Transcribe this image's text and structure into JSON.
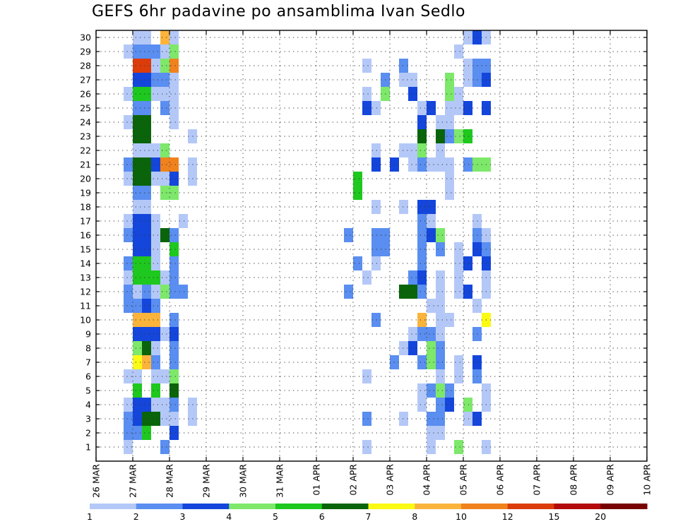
{
  "chart_data": {
    "type": "heatmap",
    "title": "GEFS 6hr padavine po ansamblima Ivan Sedlo",
    "xlabel": "",
    "ylabel": "",
    "x_ticks": [
      "26 MAR",
      "27 MAR",
      "28 MAR",
      "29 MAR",
      "30 MAR",
      "31 MAR",
      "01 APR",
      "02 APR",
      "03 APR",
      "04 APR",
      "05 APR",
      "06 APR",
      "07 APR",
      "08 APR",
      "09 APR",
      "10 APR"
    ],
    "y_ticks": [
      1,
      2,
      3,
      4,
      5,
      6,
      7,
      8,
      9,
      10,
      11,
      12,
      13,
      14,
      15,
      16,
      17,
      18,
      19,
      20,
      21,
      22,
      23,
      24,
      25,
      26,
      27,
      28,
      29,
      30
    ],
    "n_steps": 60,
    "grid": true,
    "legend": {
      "placement": "bottom",
      "labels": [
        "1",
        "2",
        "3",
        "4",
        "5",
        "6",
        "7",
        "8",
        "10",
        "12",
        "15",
        "20"
      ],
      "colors": [
        "#b4c8f8",
        "#5a8ef0",
        "#1446dc",
        "#7de86a",
        "#1ec81e",
        "#0a640a",
        "#fafa14",
        "#fab43c",
        "#f0821e",
        "#dc3c0a",
        "#b40a0a",
        "#780000"
      ]
    },
    "cells": [
      [
        3,
        1,
        1
      ],
      [
        3,
        2,
        2
      ],
      [
        3,
        3,
        2
      ],
      [
        3,
        4,
        1
      ],
      [
        3,
        6,
        1
      ],
      [
        3,
        11,
        2
      ],
      [
        3,
        12,
        2
      ],
      [
        3,
        13,
        1
      ],
      [
        3,
        14,
        2
      ],
      [
        3,
        16,
        2
      ],
      [
        3,
        17,
        1
      ],
      [
        3,
        20,
        1
      ],
      [
        3,
        21,
        2
      ],
      [
        3,
        24,
        1
      ],
      [
        3,
        26,
        1
      ],
      [
        3,
        29,
        1
      ],
      [
        4,
        2,
        2
      ],
      [
        4,
        3,
        3
      ],
      [
        4,
        4,
        3
      ],
      [
        4,
        5,
        5
      ],
      [
        4,
        6,
        1
      ],
      [
        4,
        7,
        7
      ],
      [
        4,
        8,
        4
      ],
      [
        4,
        9,
        3
      ],
      [
        4,
        10,
        8
      ],
      [
        4,
        11,
        2
      ],
      [
        4,
        12,
        1
      ],
      [
        4,
        13,
        5
      ],
      [
        4,
        14,
        5
      ],
      [
        4,
        15,
        3
      ],
      [
        4,
        16,
        3
      ],
      [
        4,
        17,
        3
      ],
      [
        4,
        18,
        1
      ],
      [
        4,
        19,
        2
      ],
      [
        4,
        20,
        6
      ],
      [
        4,
        21,
        6
      ],
      [
        4,
        22,
        1
      ],
      [
        4,
        23,
        6
      ],
      [
        4,
        24,
        6
      ],
      [
        4,
        25,
        2
      ],
      [
        4,
        26,
        5
      ],
      [
        4,
        27,
        3
      ],
      [
        4,
        28,
        10
      ],
      [
        4,
        29,
        2
      ],
      [
        4,
        30,
        1
      ],
      [
        5,
        2,
        5
      ],
      [
        5,
        3,
        6
      ],
      [
        5,
        4,
        3
      ],
      [
        5,
        7,
        8
      ],
      [
        5,
        8,
        6
      ],
      [
        5,
        9,
        3
      ],
      [
        5,
        10,
        8
      ],
      [
        5,
        11,
        3
      ],
      [
        5,
        12,
        2
      ],
      [
        5,
        13,
        5
      ],
      [
        5,
        14,
        5
      ],
      [
        5,
        15,
        3
      ],
      [
        5,
        16,
        3
      ],
      [
        5,
        17,
        3
      ],
      [
        5,
        18,
        1
      ],
      [
        5,
        19,
        2
      ],
      [
        5,
        20,
        6
      ],
      [
        5,
        21,
        6
      ],
      [
        5,
        22,
        1
      ],
      [
        5,
        23,
        6
      ],
      [
        5,
        24,
        6
      ],
      [
        5,
        25,
        2
      ],
      [
        5,
        26,
        5
      ],
      [
        5,
        27,
        3
      ],
      [
        5,
        28,
        10
      ],
      [
        5,
        29,
        2
      ],
      [
        5,
        30,
        1
      ],
      [
        6,
        3,
        6
      ],
      [
        6,
        4,
        1
      ],
      [
        6,
        5,
        5
      ],
      [
        6,
        6,
        1
      ],
      [
        6,
        7,
        2
      ],
      [
        6,
        8,
        1
      ],
      [
        6,
        9,
        3
      ],
      [
        6,
        10,
        8
      ],
      [
        6,
        11,
        2
      ],
      [
        6,
        12,
        1
      ],
      [
        6,
        13,
        5
      ],
      [
        6,
        14,
        1
      ],
      [
        6,
        15,
        1
      ],
      [
        6,
        16,
        1
      ],
      [
        6,
        17,
        1
      ],
      [
        6,
        20,
        1
      ],
      [
        6,
        21,
        3
      ],
      [
        6,
        22,
        1
      ],
      [
        6,
        26,
        1
      ],
      [
        6,
        27,
        2
      ],
      [
        6,
        28,
        1
      ],
      [
        6,
        29,
        2
      ],
      [
        7,
        1,
        2
      ],
      [
        7,
        3,
        1
      ],
      [
        7,
        4,
        1
      ],
      [
        7,
        6,
        1
      ],
      [
        7,
        9,
        1
      ],
      [
        7,
        12,
        4
      ],
      [
        7,
        13,
        1
      ],
      [
        7,
        16,
        6
      ],
      [
        7,
        19,
        4
      ],
      [
        7,
        20,
        1
      ],
      [
        7,
        21,
        9
      ],
      [
        7,
        22,
        4
      ],
      [
        7,
        25,
        2
      ],
      [
        7,
        26,
        1
      ],
      [
        7,
        27,
        2
      ],
      [
        7,
        28,
        4
      ],
      [
        7,
        29,
        1
      ],
      [
        7,
        30,
        8
      ],
      [
        8,
        2,
        3
      ],
      [
        8,
        3,
        1
      ],
      [
        8,
        4,
        2
      ],
      [
        8,
        5,
        6
      ],
      [
        8,
        6,
        4
      ],
      [
        8,
        7,
        2
      ],
      [
        8,
        8,
        2
      ],
      [
        8,
        9,
        3
      ],
      [
        8,
        10,
        2
      ],
      [
        8,
        12,
        2
      ],
      [
        8,
        13,
        2
      ],
      [
        8,
        14,
        2
      ],
      [
        8,
        15,
        5
      ],
      [
        8,
        16,
        2
      ],
      [
        8,
        19,
        4
      ],
      [
        8,
        20,
        3
      ],
      [
        8,
        21,
        9
      ],
      [
        8,
        24,
        1
      ],
      [
        8,
        25,
        1
      ],
      [
        8,
        26,
        1
      ],
      [
        8,
        27,
        1
      ],
      [
        8,
        28,
        9
      ],
      [
        8,
        29,
        4
      ],
      [
        8,
        30,
        1
      ],
      [
        9,
        12,
        2
      ],
      [
        9,
        17,
        1
      ],
      [
        10,
        3,
        1
      ],
      [
        10,
        4,
        1
      ],
      [
        10,
        20,
        1
      ],
      [
        10,
        21,
        1
      ],
      [
        10,
        23,
        1
      ],
      [
        27,
        12,
        2
      ],
      [
        27,
        16,
        2
      ],
      [
        28,
        14,
        2
      ],
      [
        28,
        19,
        5
      ],
      [
        28,
        20,
        5
      ],
      [
        29,
        1,
        1
      ],
      [
        29,
        3,
        2
      ],
      [
        29,
        6,
        1
      ],
      [
        29,
        13,
        1
      ],
      [
        29,
        25,
        3
      ],
      [
        29,
        26,
        1
      ],
      [
        29,
        28,
        1
      ],
      [
        30,
        10,
        2
      ],
      [
        30,
        14,
        1
      ],
      [
        30,
        15,
        2
      ],
      [
        30,
        16,
        2
      ],
      [
        30,
        18,
        1
      ],
      [
        30,
        21,
        3
      ],
      [
        30,
        22,
        1
      ],
      [
        30,
        25,
        1
      ],
      [
        31,
        15,
        2
      ],
      [
        31,
        16,
        2
      ],
      [
        31,
        26,
        4
      ],
      [
        31,
        27,
        2
      ],
      [
        32,
        7,
        2
      ],
      [
        32,
        21,
        3
      ],
      [
        33,
        3,
        1
      ],
      [
        33,
        8,
        1
      ],
      [
        33,
        12,
        6
      ],
      [
        33,
        18,
        1
      ],
      [
        33,
        22,
        1
      ],
      [
        33,
        27,
        1
      ],
      [
        33,
        28,
        2
      ],
      [
        34,
        8,
        3
      ],
      [
        34,
        9,
        1
      ],
      [
        34,
        12,
        6
      ],
      [
        34,
        13,
        2
      ],
      [
        34,
        21,
        1
      ],
      [
        34,
        22,
        1
      ],
      [
        34,
        26,
        3
      ],
      [
        34,
        27,
        1
      ],
      [
        35,
        4,
        1
      ],
      [
        35,
        5,
        1
      ],
      [
        35,
        7,
        2
      ],
      [
        35,
        9,
        2
      ],
      [
        35,
        10,
        8
      ],
      [
        35,
        12,
        2
      ],
      [
        35,
        13,
        3
      ],
      [
        35,
        14,
        2
      ],
      [
        35,
        15,
        2
      ],
      [
        35,
        16,
        2
      ],
      [
        35,
        17,
        2
      ],
      [
        35,
        18,
        3
      ],
      [
        35,
        21,
        2
      ],
      [
        35,
        22,
        4
      ],
      [
        35,
        23,
        6
      ],
      [
        35,
        24,
        3
      ],
      [
        35,
        25,
        1
      ],
      [
        36,
        1,
        1
      ],
      [
        36,
        2,
        1
      ],
      [
        36,
        3,
        2
      ],
      [
        36,
        5,
        2
      ],
      [
        36,
        7,
        4
      ],
      [
        36,
        8,
        4
      ],
      [
        36,
        9,
        2
      ],
      [
        36,
        11,
        1
      ],
      [
        36,
        16,
        3
      ],
      [
        36,
        17,
        1
      ],
      [
        36,
        18,
        3
      ],
      [
        36,
        21,
        1
      ],
      [
        36,
        25,
        3
      ],
      [
        37,
        2,
        1
      ],
      [
        37,
        3,
        2
      ],
      [
        37,
        4,
        2
      ],
      [
        37,
        5,
        4
      ],
      [
        37,
        6,
        1
      ],
      [
        37,
        7,
        2
      ],
      [
        37,
        8,
        2
      ],
      [
        37,
        9,
        1
      ],
      [
        37,
        10,
        1
      ],
      [
        37,
        11,
        1
      ],
      [
        37,
        12,
        1
      ],
      [
        37,
        13,
        1
      ],
      [
        37,
        15,
        2
      ],
      [
        37,
        16,
        4
      ],
      [
        37,
        21,
        1
      ],
      [
        37,
        22,
        1
      ],
      [
        37,
        23,
        6
      ],
      [
        37,
        24,
        1
      ],
      [
        38,
        4,
        3
      ],
      [
        38,
        5,
        2
      ],
      [
        38,
        10,
        1
      ],
      [
        38,
        19,
        1
      ],
      [
        38,
        20,
        1
      ],
      [
        38,
        21,
        1
      ],
      [
        38,
        23,
        2
      ],
      [
        38,
        24,
        1
      ],
      [
        38,
        25,
        1
      ],
      [
        38,
        26,
        4
      ],
      [
        38,
        27,
        4
      ],
      [
        39,
        1,
        4
      ],
      [
        39,
        6,
        1
      ],
      [
        39,
        7,
        1
      ],
      [
        39,
        12,
        1
      ],
      [
        39,
        13,
        1
      ],
      [
        39,
        14,
        1
      ],
      [
        39,
        15,
        1
      ],
      [
        39,
        23,
        4
      ],
      [
        39,
        25,
        1
      ],
      [
        39,
        26,
        1
      ],
      [
        39,
        29,
        1
      ],
      [
        40,
        3,
        1
      ],
      [
        40,
        4,
        4
      ],
      [
        40,
        12,
        3
      ],
      [
        40,
        14,
        3
      ],
      [
        40,
        21,
        2
      ],
      [
        40,
        23,
        5
      ],
      [
        40,
        25,
        3
      ],
      [
        40,
        27,
        1
      ],
      [
        40,
        28,
        1
      ],
      [
        40,
        30,
        1
      ],
      [
        41,
        3,
        3
      ],
      [
        41,
        6,
        2
      ],
      [
        41,
        7,
        3
      ],
      [
        41,
        9,
        2
      ],
      [
        41,
        11,
        1
      ],
      [
        41,
        15,
        3
      ],
      [
        41,
        16,
        2
      ],
      [
        41,
        17,
        1
      ],
      [
        41,
        21,
        4
      ],
      [
        41,
        27,
        2
      ],
      [
        41,
        28,
        2
      ],
      [
        41,
        30,
        3
      ],
      [
        42,
        1,
        1
      ],
      [
        42,
        4,
        1
      ],
      [
        42,
        5,
        1
      ],
      [
        42,
        10,
        7
      ],
      [
        42,
        12,
        1
      ],
      [
        42,
        13,
        1
      ],
      [
        42,
        14,
        3
      ],
      [
        42,
        15,
        2
      ],
      [
        42,
        16,
        1
      ],
      [
        42,
        21,
        4
      ],
      [
        42,
        25,
        3
      ],
      [
        42,
        27,
        3
      ],
      [
        42,
        28,
        2
      ],
      [
        42,
        30,
        1
      ]
    ]
  }
}
